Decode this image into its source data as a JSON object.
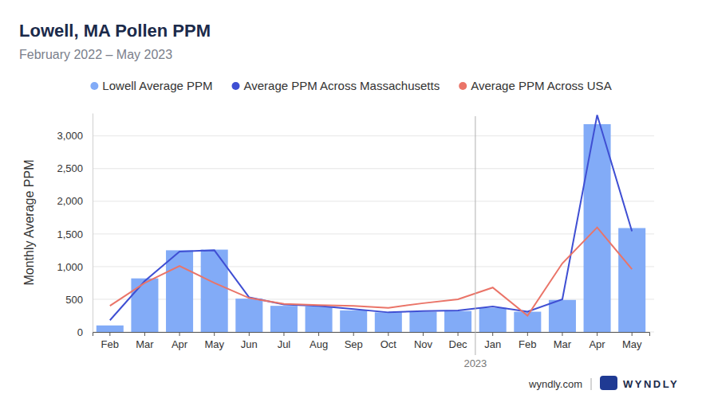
{
  "chart_data": {
    "type": "bar",
    "title": "Lowell, MA Pollen PPM",
    "subtitle": "February 2022 – May 2023",
    "y_label": "Monthly Average PPM",
    "categories": [
      "Feb",
      "Mar",
      "Apr",
      "May",
      "Jun",
      "Jul",
      "Aug",
      "Sep",
      "Oct",
      "Nov",
      "Dec",
      "Jan",
      "Feb",
      "Mar",
      "Apr",
      "May"
    ],
    "series": [
      {
        "name": "Lowell Average PPM",
        "type": "bar",
        "color": "#82abf7",
        "values": [
          100,
          820,
          1250,
          1260,
          510,
          400,
          390,
          330,
          300,
          310,
          320,
          370,
          310,
          490,
          3180,
          1590
        ]
      },
      {
        "name": "Average PPM Across Massachusetts",
        "type": "line",
        "color": "#3f4fd3",
        "values": [
          180,
          780,
          1230,
          1250,
          530,
          420,
          400,
          350,
          300,
          320,
          330,
          390,
          310,
          500,
          3320,
          1540
        ]
      },
      {
        "name": "Average PPM Across USA",
        "type": "line",
        "color": "#ea7468",
        "values": [
          400,
          750,
          1010,
          750,
          520,
          430,
          410,
          400,
          370,
          440,
          500,
          680,
          250,
          1050,
          1600,
          960
        ]
      }
    ],
    "ylim": [
      0,
      3350
    ],
    "yticks": [
      0,
      500,
      {
        "value": 1000,
        "label": "1,000"
      },
      {
        "value": 1500,
        "label": "1,500"
      },
      {
        "value": 2000,
        "label": "2,000"
      },
      {
        "value": 2500,
        "label": "2,500"
      },
      {
        "value": 3000,
        "label": "3,000"
      }
    ],
    "grid": true,
    "legend": "top",
    "annotations": [
      {
        "text": "2023",
        "x": 11
      }
    ],
    "footer": {
      "site": "wyndly.com",
      "brand": "WYNDLY"
    }
  }
}
